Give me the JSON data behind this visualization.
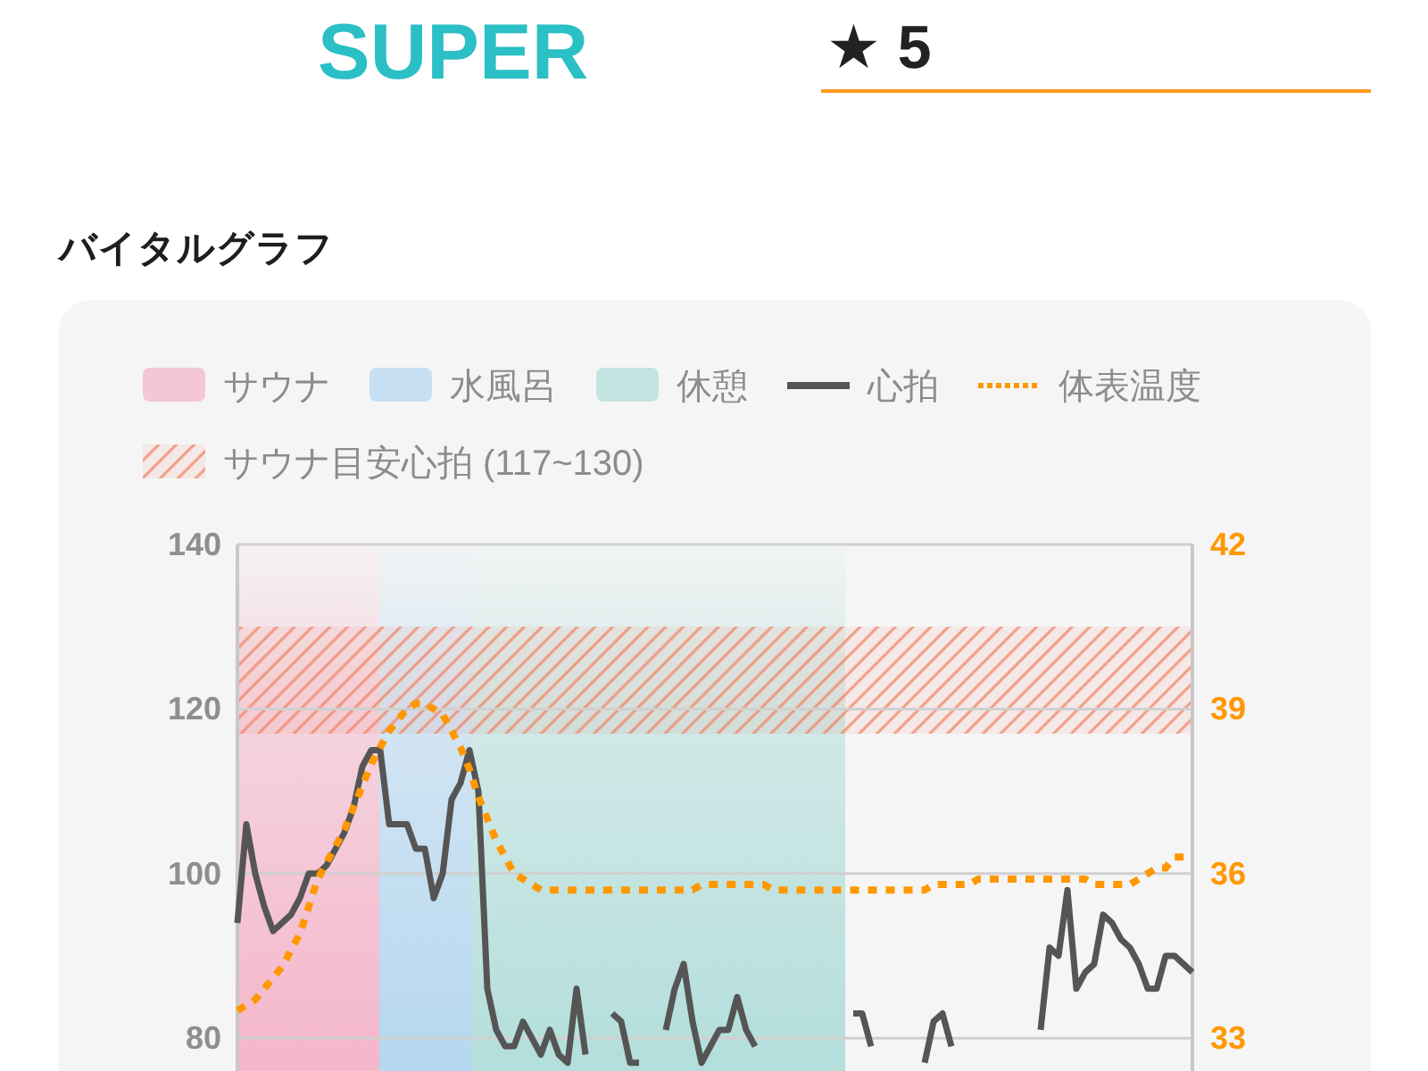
{
  "chart_data": {
    "type": "line",
    "title": "バイタルグラフ",
    "annotations": [
      "SUPER",
      "★ 5",
      "サウナ",
      "水風呂",
      "休憩"
    ],
    "categories": [
      null,
      null,
      null,
      null,
      null,
      null,
      null,
      null,
      null,
      null,
      null,
      null,
      null,
      null,
      null,
      null,
      null,
      null,
      null,
      null,
      null,
      null,
      null,
      null,
      null,
      null,
      null,
      null,
      null,
      null,
      null,
      null,
      null,
      null,
      null,
      null,
      null,
      null,
      null,
      null,
      null,
      null,
      null,
      null,
      null,
      null,
      null,
      null,
      null,
      null,
      null,
      null,
      null,
      null,
      null,
      null,
      null,
      null,
      null,
      null,
      null,
      null,
      null,
      null,
      null,
      null,
      null,
      null,
      null,
      null,
      null,
      null,
      null,
      null,
      null,
      null,
      null,
      null,
      null,
      null,
      null,
      null,
      null,
      null,
      null,
      null,
      null,
      null,
      null,
      null,
      null,
      null,
      null,
      null,
      null,
      null,
      null,
      null,
      null,
      null,
      null,
      null,
      null,
      null,
      null,
      null,
      null,
      null
    ],
    "series": [
      {
        "name": "心拍",
        "color": "#555555",
        "line_style": "solid",
        "values": [
          94,
          106,
          100,
          96,
          93,
          94,
          95,
          97,
          100,
          100,
          101,
          103,
          105,
          108,
          113,
          115,
          115,
          106,
          106,
          106,
          103,
          103,
          97,
          100,
          109,
          111,
          115,
          110,
          86,
          81,
          79,
          79,
          82,
          80,
          78,
          81,
          78,
          77,
          86,
          78,
          null,
          null,
          83,
          82,
          77,
          77,
          null,
          null,
          81,
          86,
          89,
          82,
          77,
          79,
          81,
          81,
          85,
          81,
          79,
          null,
          null,
          null,
          null,
          null,
          null,
          null,
          null,
          null,
          null,
          83,
          83,
          79,
          null,
          null,
          null,
          null,
          null,
          77,
          82,
          83,
          79,
          null,
          null,
          null,
          null,
          null,
          null,
          null,
          null,
          null,
          81,
          91,
          90,
          98,
          86,
          88,
          89,
          95,
          94,
          92,
          91,
          89,
          86,
          86,
          90,
          90,
          89,
          88
        ]
      },
      {
        "name": "体表温度",
        "color": "#ff9800",
        "axis": "y2",
        "line_style": "dotted",
        "values": [
          33.5,
          33.6,
          33.7,
          33.9,
          34.1,
          34.3,
          34.6,
          34.9,
          35.4,
          35.9,
          36.2,
          36.5,
          36.8,
          37.2,
          37.6,
          38.0,
          38.3,
          38.6,
          38.8,
          39.0,
          39.1,
          39.1,
          39.0,
          38.9,
          38.6,
          38.3,
          37.9,
          37.4,
          37.0,
          36.6,
          36.3,
          36.0,
          35.9,
          35.8,
          35.7,
          35.7,
          35.7,
          35.7,
          35.7,
          35.7,
          35.7,
          35.7,
          35.7,
          35.7,
          35.7,
          35.7,
          35.7,
          35.7,
          35.7,
          35.7,
          35.7,
          35.7,
          35.8,
          35.8,
          35.8,
          35.8,
          35.8,
          35.8,
          35.8,
          35.8,
          35.7,
          35.7,
          35.7,
          35.7,
          35.7,
          35.7,
          35.7,
          35.7,
          35.7,
          35.7,
          35.7,
          35.7,
          35.7,
          35.7,
          35.7,
          35.7,
          35.7,
          35.7,
          35.8,
          35.8,
          35.8,
          35.8,
          35.8,
          35.9,
          35.9,
          35.9,
          35.9,
          35.9,
          35.9,
          35.9,
          35.9,
          35.9,
          35.9,
          35.9,
          35.9,
          35.9,
          35.8,
          35.8,
          35.8,
          35.8,
          35.8,
          35.9,
          36.0,
          36.1,
          36.1,
          36.3,
          36.3,
          36.3
        ]
      }
    ],
    "ylim": [
      76,
      140
    ],
    "yticks": [
      80,
      100,
      120,
      140
    ],
    "y2lim": [
      32.4,
      42
    ],
    "y2ticks": [
      33,
      36,
      39,
      42
    ],
    "bands": [
      {
        "axis": "y",
        "from": 117,
        "to": 130,
        "label": "サウナ目安心拍 (117~130)",
        "color": "#f08060"
      }
    ],
    "grid": "y",
    "legend": "top"
  }
}
